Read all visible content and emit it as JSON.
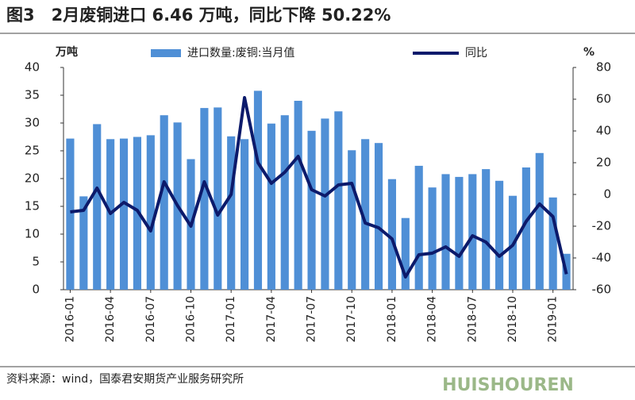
{
  "chart_data": {
    "type": "bar-line",
    "title": "图3　2月废铜进口 6.46 万吨，同比下降 50.22%",
    "ylabel": "万吨",
    "y2label": "%",
    "source": "资料来源：wind，国泰君安期货产业服务研究所",
    "watermark": "HUISHOUREN",
    "categories": [
      "2016-01",
      null,
      null,
      "2016-04",
      null,
      null,
      "2016-07",
      null,
      null,
      "2016-10",
      null,
      null,
      "2017-01",
      null,
      null,
      "2017-04",
      null,
      null,
      "2017-07",
      null,
      null,
      "2017-10",
      null,
      null,
      "2018-01",
      null,
      null,
      "2018-04",
      null,
      null,
      "2018-07",
      null,
      null,
      "2018-10",
      null,
      null,
      "2019-01",
      null
    ],
    "series": [
      {
        "name": "进口数量:废铜:当月值",
        "color": "#4f8fd6",
        "type": "bar",
        "values": [
          27.2,
          16.8,
          29.8,
          27.1,
          27.2,
          27.5,
          27.8,
          31.4,
          30.1,
          23.5,
          32.7,
          32.8,
          27.6,
          27.1,
          35.8,
          29.9,
          31.4,
          34.0,
          28.6,
          30.8,
          32.1,
          25.1,
          27.1,
          26.4,
          19.9,
          12.9,
          22.3,
          18.4,
          20.8,
          20.3,
          20.8,
          21.7,
          19.6,
          16.9,
          22.0,
          24.6,
          16.6,
          6.46
        ]
      },
      {
        "name": "同比",
        "color": "#0c1a6b",
        "type": "line",
        "axis": "y2",
        "values": [
          -11,
          -10,
          4,
          -12,
          -5,
          -10,
          -23,
          8,
          -7,
          -20,
          8,
          -13,
          0,
          61,
          20,
          7,
          14,
          24,
          3,
          -1,
          6,
          7,
          -18,
          -21,
          -28,
          -52,
          -38,
          -37,
          -33,
          -39,
          -26,
          -30,
          -39,
          -32,
          -17,
          -6,
          -14,
          -50.22
        ]
      }
    ],
    "ylim": [
      0,
      40
    ],
    "yticks": [
      0,
      5,
      10,
      15,
      20,
      25,
      30,
      35,
      40
    ],
    "y2lim": [
      -60,
      80
    ],
    "y2ticks": [
      -60,
      -40,
      -20,
      0,
      20,
      40,
      60,
      80
    ],
    "grid": false
  }
}
